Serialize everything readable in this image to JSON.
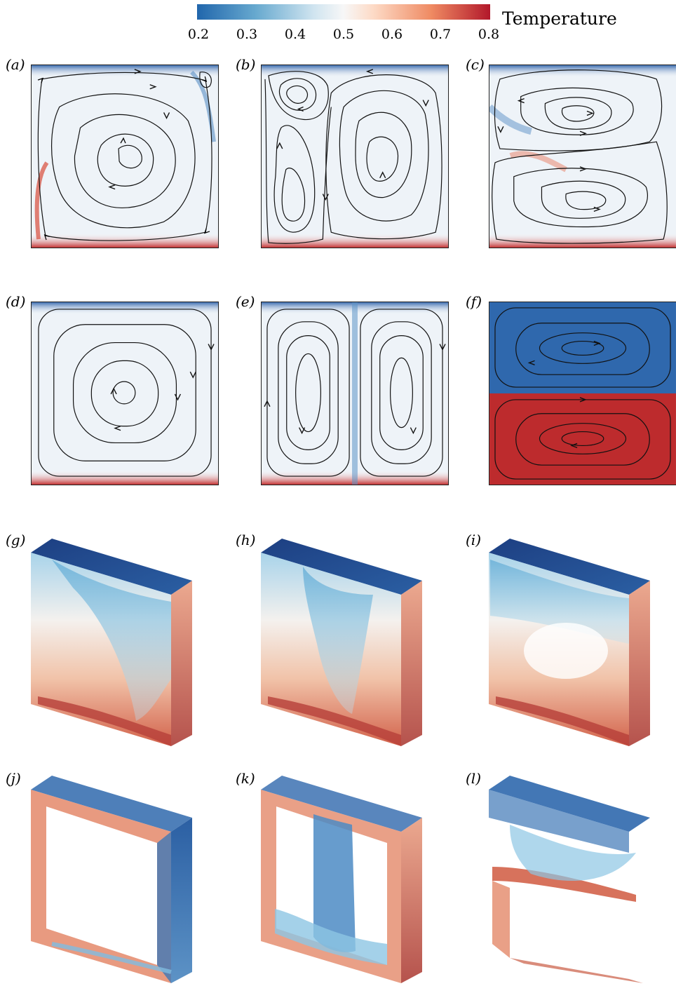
{
  "colorbar": {
    "title": "Temperature",
    "ticks": [
      "0.2",
      "0.3",
      "0.4",
      "0.5",
      "0.6",
      "0.7",
      "0.8"
    ],
    "colors": [
      "#2166ac",
      "#67a9cf",
      "#d1e5f0",
      "#f7f7f7",
      "#fddbc7",
      "#ef8a62",
      "#b2182b"
    ]
  },
  "panels": {
    "a": {
      "label": "(a)"
    },
    "b": {
      "label": "(b)"
    },
    "c": {
      "label": "(c)"
    },
    "d": {
      "label": "(d)"
    },
    "e": {
      "label": "(e)"
    },
    "f": {
      "label": "(f)"
    },
    "g": {
      "label": "(g)"
    },
    "h": {
      "label": "(h)"
    },
    "i": {
      "label": "(i)"
    },
    "j": {
      "label": "(j)"
    },
    "k": {
      "label": "(k)"
    },
    "l": {
      "label": "(l)"
    }
  }
}
